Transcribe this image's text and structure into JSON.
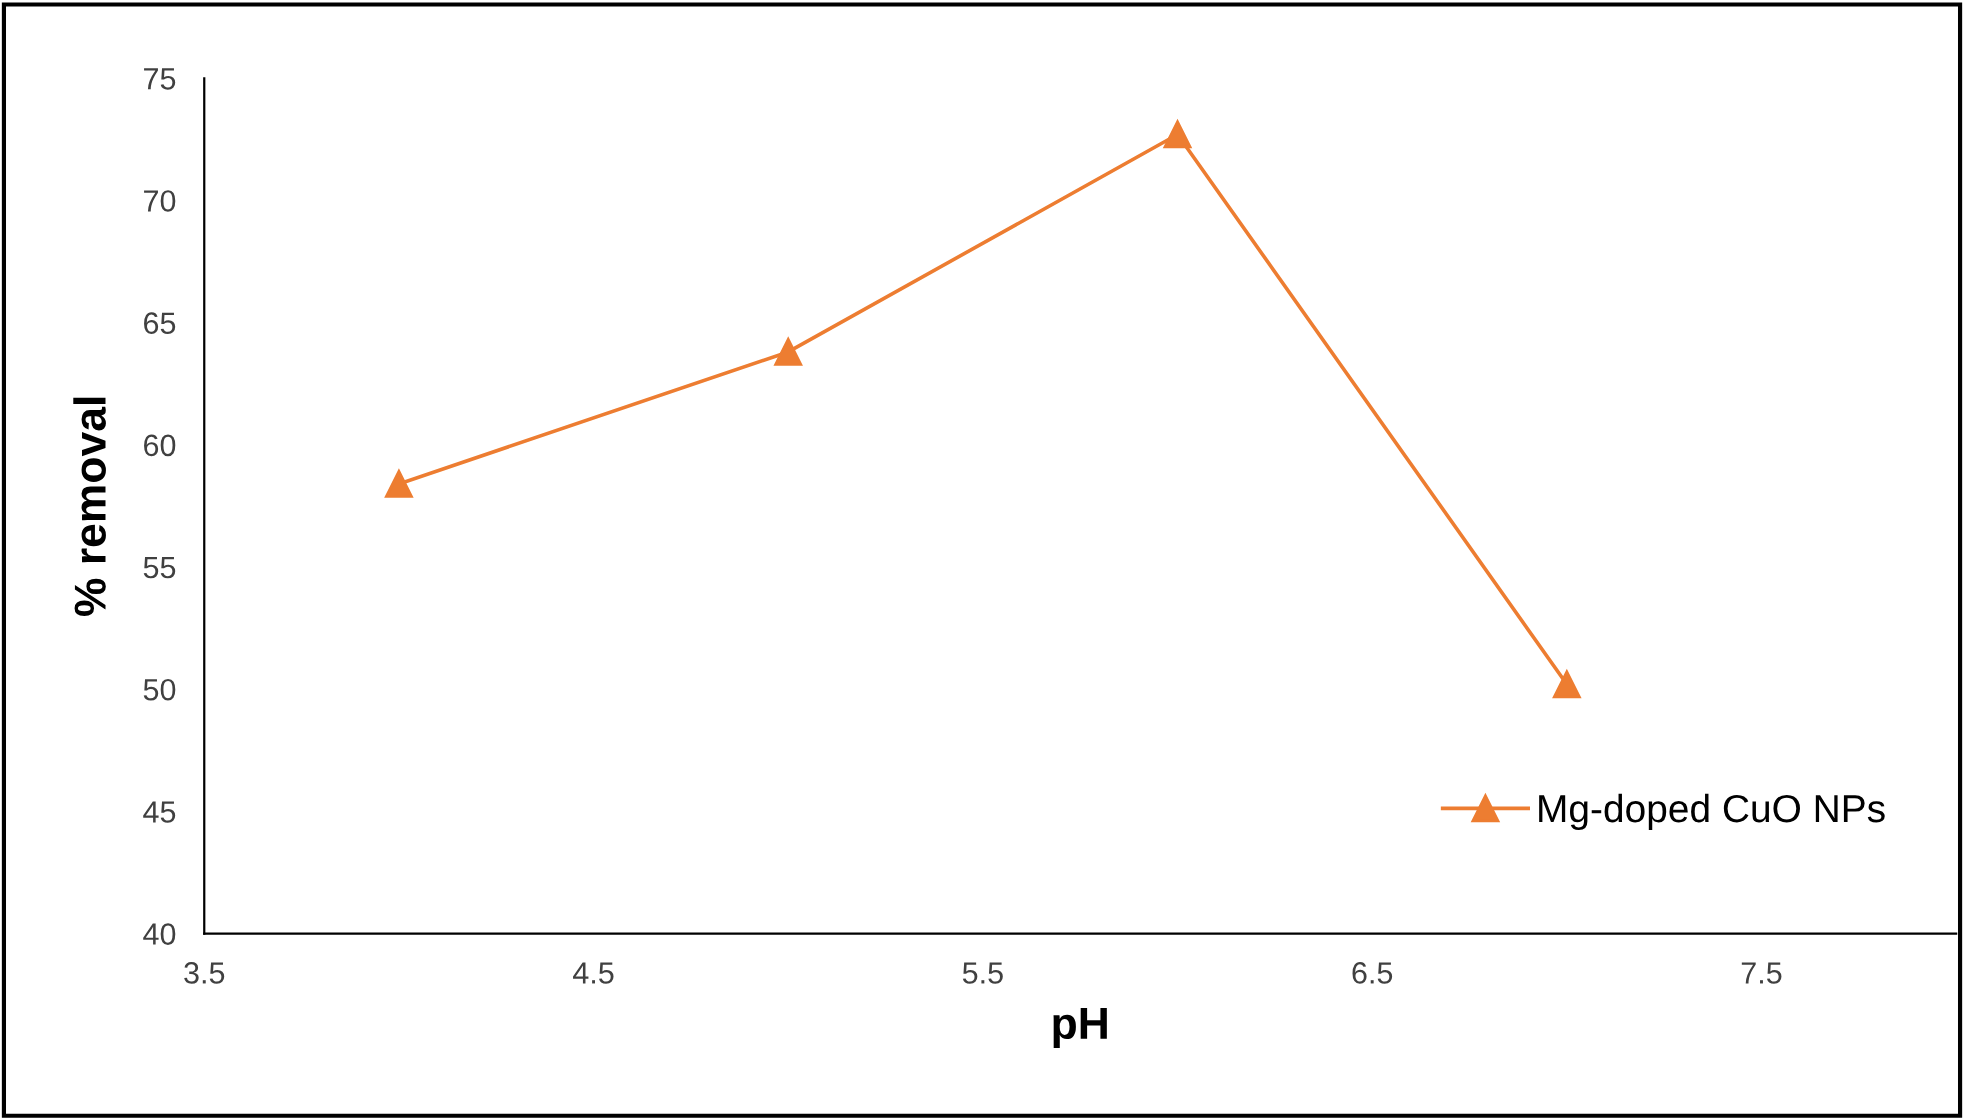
{
  "chart_data": {
    "type": "line",
    "xlabel": "pH",
    "ylabel": "% removal",
    "x": [
      4,
      5,
      6,
      7
    ],
    "series": [
      {
        "name": "Mg-doped CuO NPs",
        "color": "#ed7d31",
        "values": [
          58.4,
          63.8,
          72.7,
          50.2
        ]
      }
    ],
    "xlim": [
      3.5,
      8
    ],
    "xticks": [
      3.5,
      4.5,
      5.5,
      6.5,
      7.5
    ],
    "ylim": [
      40,
      75
    ],
    "yticks": [
      40,
      45,
      50,
      55,
      60,
      65,
      70,
      75
    ],
    "grid": false,
    "legend": "bottom right",
    "marker": "triangle",
    "line_style": "solid"
  }
}
